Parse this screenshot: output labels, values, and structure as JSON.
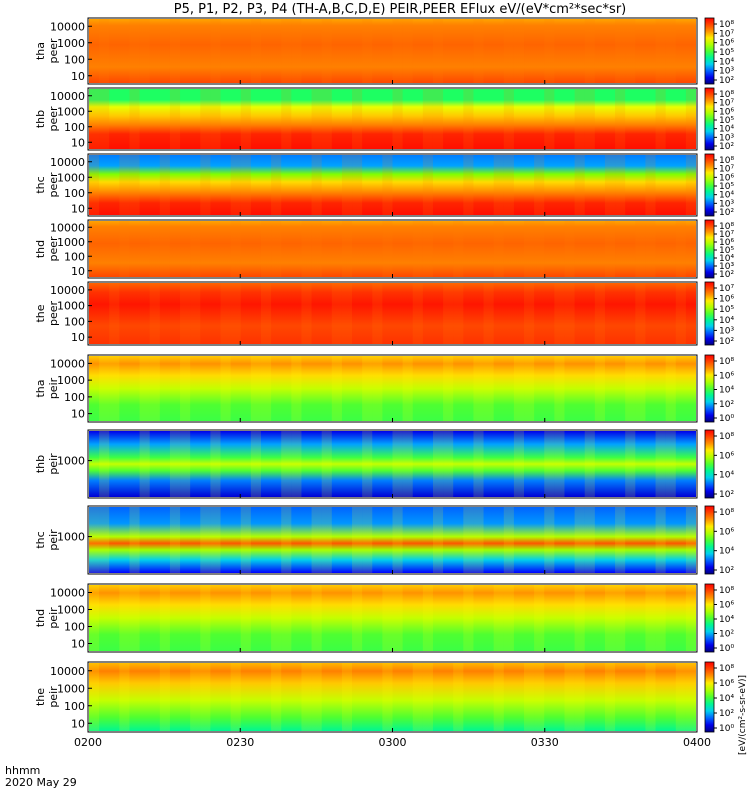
{
  "chart_data": {
    "type": "heatmap",
    "title": "P5, P1, P2, P3, P4 (TH-A,B,C,D,E) PEIR,PEER EFlux eV/(eV*cm²*sec*sr)",
    "x_ticks": [
      "0200",
      "0230",
      "0300",
      "0330",
      "0400"
    ],
    "x_range": [
      "02:00",
      "04:00"
    ],
    "x_label_1": "hhmm",
    "x_label_2": "2020 May 29",
    "y_scale": "log",
    "colorbar_label": "[eV/(cm²-s-sr-eV)]",
    "colorbar_label_peer": "EFlux eV/(eV*cm²*sec*sr)",
    "panels": [
      {
        "probe": "tha",
        "instrument": "peer",
        "y_ticks": [
          "10000",
          "1000",
          "100",
          "10"
        ],
        "colorbar_ticks": [
          "10⁸",
          "10⁷",
          "10⁶",
          "10⁵",
          "10⁴",
          "10³",
          "10²"
        ],
        "pattern": "saturated"
      },
      {
        "probe": "thb",
        "instrument": "peer",
        "y_ticks": [
          "10000",
          "1000",
          "100",
          "10"
        ],
        "colorbar_ticks": [
          "10⁸",
          "10⁷",
          "10⁶",
          "10⁵",
          "10⁴",
          "10³",
          "10²"
        ],
        "pattern": "peer_bands"
      },
      {
        "probe": "thc",
        "instrument": "peer",
        "y_ticks": [
          "10000",
          "1000",
          "100",
          "10"
        ],
        "colorbar_ticks": [
          "10⁸",
          "10⁷",
          "10⁶",
          "10⁵",
          "10⁴",
          "10³",
          "10²"
        ],
        "pattern": "peer_bands_blue"
      },
      {
        "probe": "thd",
        "instrument": "peer",
        "y_ticks": [
          "10000",
          "1000",
          "100",
          "10"
        ],
        "colorbar_ticks": [
          "10⁸",
          "10⁷",
          "10⁶",
          "10⁵",
          "10⁴",
          "10³",
          "10²"
        ],
        "pattern": "saturated"
      },
      {
        "probe": "the",
        "instrument": "peer",
        "y_ticks": [
          "10000",
          "1000",
          "100",
          "10"
        ],
        "colorbar_ticks": [
          "10⁷",
          "10⁶",
          "10⁵",
          "10⁴",
          "10³",
          "10²"
        ],
        "pattern": "saturated_red"
      },
      {
        "probe": "tha",
        "instrument": "peir",
        "y_ticks": [
          "10000",
          "1000",
          "100",
          "10"
        ],
        "colorbar_ticks": [
          "10⁸",
          "10⁶",
          "10⁴",
          "10²",
          "10⁰"
        ],
        "pattern": "ion"
      },
      {
        "probe": "thb",
        "instrument": "peir",
        "y_ticks": [
          "1000"
        ],
        "colorbar_ticks": [
          "10⁸",
          "10⁶",
          "10⁴",
          "10²"
        ],
        "pattern": "ion_bands"
      },
      {
        "probe": "thc",
        "instrument": "peir",
        "y_ticks": [
          "1000"
        ],
        "colorbar_ticks": [
          "10⁸",
          "10⁶",
          "10⁴",
          "10²"
        ],
        "pattern": "ion_bands_red"
      },
      {
        "probe": "thd",
        "instrument": "peir",
        "y_ticks": [
          "10000",
          "1000",
          "100",
          "10"
        ],
        "colorbar_ticks": [
          "10⁸",
          "10⁶",
          "10⁴",
          "10²",
          "10⁰"
        ],
        "pattern": "ion"
      },
      {
        "probe": "the",
        "instrument": "peir",
        "y_ticks": [
          "10000",
          "1000",
          "100",
          "10"
        ],
        "colorbar_ticks": [
          "10⁸",
          "10⁶",
          "10⁴",
          "10²",
          "10⁰"
        ],
        "pattern": "ion_late"
      }
    ]
  }
}
